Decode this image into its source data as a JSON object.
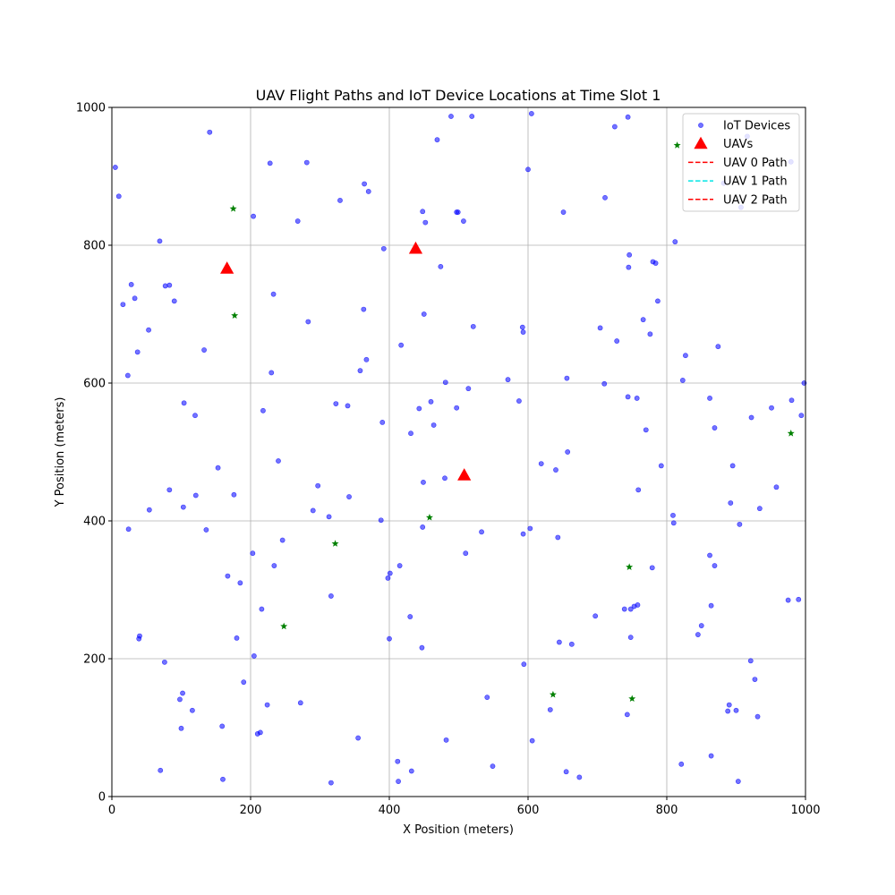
{
  "chart_data": {
    "type": "scatter",
    "title": "UAV Flight Paths and IoT Device Locations at Time Slot 1",
    "xlabel": "X Position (meters)",
    "ylabel": "Y Position (meters)",
    "xlim": [
      0,
      1000
    ],
    "ylim": [
      0,
      1000
    ],
    "xticks": [
      0,
      200,
      400,
      600,
      800,
      1000
    ],
    "yticks": [
      0,
      200,
      400,
      600,
      800,
      1000
    ],
    "grid": true,
    "legend_position": "top-right",
    "colors": {
      "iot": "#0000ff",
      "uav": "#ff0000",
      "hover": "#008000",
      "path0": "#ff0000",
      "path1": "#00e5e5",
      "path2": "#ff0000"
    },
    "legend": [
      {
        "label": "IoT Devices",
        "kind": "dot",
        "color": "#0000ff"
      },
      {
        "label": "UAVs",
        "kind": "triangle",
        "color": "#ff0000"
      },
      {
        "label": "UAV 0 Path",
        "kind": "dash",
        "color": "#ff0000"
      },
      {
        "label": "UAV 1 Path",
        "kind": "dash",
        "color": "#00e5e5"
      },
      {
        "label": "UAV 2 Path",
        "kind": "dash",
        "color": "#ff0000"
      }
    ],
    "series": [
      {
        "name": "IoT Devices",
        "points": [
          [
            5,
            913
          ],
          [
            10,
            871
          ],
          [
            16,
            714
          ],
          [
            23,
            611
          ],
          [
            24,
            388
          ],
          [
            28,
            743
          ],
          [
            33,
            723
          ],
          [
            37,
            645
          ],
          [
            39,
            229
          ],
          [
            40,
            233
          ],
          [
            53,
            677
          ],
          [
            54,
            416
          ],
          [
            69,
            806
          ],
          [
            70,
            38
          ],
          [
            76,
            195
          ],
          [
            77,
            741
          ],
          [
            83,
            742
          ],
          [
            83,
            445
          ],
          [
            90,
            719
          ],
          [
            98,
            141
          ],
          [
            100,
            99
          ],
          [
            102,
            150
          ],
          [
            103,
            420
          ],
          [
            104,
            571
          ],
          [
            116,
            125
          ],
          [
            120,
            553
          ],
          [
            121,
            437
          ],
          [
            133,
            648
          ],
          [
            136,
            387
          ],
          [
            141,
            964
          ],
          [
            153,
            477
          ],
          [
            159,
            102
          ],
          [
            160,
            25
          ],
          [
            167,
            320
          ],
          [
            176,
            438
          ],
          [
            180,
            230
          ],
          [
            185,
            310
          ],
          [
            190,
            166
          ],
          [
            203,
            353
          ],
          [
            204,
            842
          ],
          [
            205,
            204
          ],
          [
            210,
            91
          ],
          [
            214,
            93
          ],
          [
            216,
            272
          ],
          [
            218,
            560
          ],
          [
            224,
            133
          ],
          [
            228,
            919
          ],
          [
            230,
            615
          ],
          [
            233,
            729
          ],
          [
            234,
            335
          ],
          [
            240,
            487
          ],
          [
            246,
            372
          ],
          [
            268,
            835
          ],
          [
            272,
            136
          ],
          [
            281,
            920
          ],
          [
            283,
            689
          ],
          [
            290,
            415
          ],
          [
            297,
            451
          ],
          [
            313,
            406
          ],
          [
            316,
            20
          ],
          [
            316,
            291
          ],
          [
            323,
            570
          ],
          [
            329,
            865
          ],
          [
            340,
            567
          ],
          [
            342,
            435
          ],
          [
            355,
            85
          ],
          [
            358,
            618
          ],
          [
            363,
            707
          ],
          [
            364,
            889
          ],
          [
            367,
            634
          ],
          [
            370,
            878
          ],
          [
            388,
            401
          ],
          [
            390,
            543
          ],
          [
            392,
            795
          ],
          [
            398,
            317
          ],
          [
            400,
            229
          ],
          [
            401,
            324
          ],
          [
            412,
            51
          ],
          [
            413,
            22
          ],
          [
            415,
            335
          ],
          [
            417,
            655
          ],
          [
            430,
            261
          ],
          [
            431,
            527
          ],
          [
            432,
            37
          ],
          [
            443,
            563
          ],
          [
            447,
            216
          ],
          [
            448,
            391
          ],
          [
            448,
            849
          ],
          [
            449,
            456
          ],
          [
            450,
            700
          ],
          [
            452,
            833
          ],
          [
            460,
            573
          ],
          [
            464,
            539
          ],
          [
            469,
            953
          ],
          [
            474,
            769
          ],
          [
            480,
            462
          ],
          [
            481,
            601
          ],
          [
            482,
            82
          ],
          [
            489,
            987
          ],
          [
            497,
            564
          ],
          [
            497,
            848
          ],
          [
            499,
            848
          ],
          [
            507,
            835
          ],
          [
            510,
            353
          ],
          [
            514,
            592
          ],
          [
            519,
            987
          ],
          [
            521,
            682
          ],
          [
            533,
            384
          ],
          [
            541,
            144
          ],
          [
            549,
            44
          ],
          [
            571,
            605
          ],
          [
            587,
            574
          ],
          [
            592,
            681
          ],
          [
            593,
            674
          ],
          [
            593,
            381
          ],
          [
            594,
            192
          ],
          [
            600,
            910
          ],
          [
            603,
            389
          ],
          [
            605,
            991
          ],
          [
            606,
            81
          ],
          [
            619,
            483
          ],
          [
            632,
            126
          ],
          [
            640,
            474
          ],
          [
            643,
            376
          ],
          [
            645,
            224
          ],
          [
            651,
            848
          ],
          [
            655,
            36
          ],
          [
            656,
            607
          ],
          [
            657,
            500
          ],
          [
            663,
            221
          ],
          [
            674,
            28
          ],
          [
            697,
            262
          ],
          [
            704,
            680
          ],
          [
            710,
            599
          ],
          [
            711,
            869
          ],
          [
            725,
            972
          ],
          [
            728,
            661
          ],
          [
            739,
            272
          ],
          [
            743,
            119
          ],
          [
            744,
            580
          ],
          [
            744,
            986
          ],
          [
            745,
            768
          ],
          [
            746,
            786
          ],
          [
            748,
            272
          ],
          [
            748,
            231
          ],
          [
            753,
            276
          ],
          [
            757,
            578
          ],
          [
            758,
            278
          ],
          [
            759,
            445
          ],
          [
            766,
            692
          ],
          [
            770,
            532
          ],
          [
            776,
            671
          ],
          [
            779,
            332
          ],
          [
            780,
            776
          ],
          [
            784,
            774
          ],
          [
            787,
            719
          ],
          [
            792,
            480
          ],
          [
            809,
            408
          ],
          [
            810,
            397
          ],
          [
            812,
            805
          ],
          [
            821,
            47
          ],
          [
            823,
            604
          ],
          [
            827,
            640
          ],
          [
            845,
            235
          ],
          [
            850,
            248
          ],
          [
            862,
            578
          ],
          [
            862,
            350
          ],
          [
            864,
            277
          ],
          [
            864,
            59
          ],
          [
            869,
            535
          ],
          [
            869,
            335
          ],
          [
            874,
            653
          ],
          [
            882,
            890
          ],
          [
            888,
            124
          ],
          [
            890,
            133
          ],
          [
            892,
            426
          ],
          [
            895,
            480
          ],
          [
            900,
            125
          ],
          [
            903,
            22
          ],
          [
            905,
            395
          ],
          [
            907,
            855
          ],
          [
            916,
            958
          ],
          [
            921,
            197
          ],
          [
            922,
            550
          ],
          [
            927,
            170
          ],
          [
            931,
            116
          ],
          [
            934,
            418
          ],
          [
            951,
            564
          ],
          [
            958,
            449
          ],
          [
            975,
            285
          ],
          [
            979,
            921
          ],
          [
            980,
            575
          ],
          [
            990,
            286
          ],
          [
            994,
            553
          ],
          [
            998,
            600
          ]
        ]
      },
      {
        "name": "Hovering Points",
        "points": [
          [
            175,
            853
          ],
          [
            177,
            698
          ],
          [
            248,
            247
          ],
          [
            322,
            367
          ],
          [
            458,
            405
          ],
          [
            636,
            148
          ],
          [
            746,
            333
          ],
          [
            750,
            142
          ],
          [
            815,
            945
          ],
          [
            979,
            527
          ]
        ]
      },
      {
        "name": "UAVs",
        "points": [
          [
            166,
            766
          ],
          [
            438,
            795
          ],
          [
            508,
            466
          ]
        ]
      }
    ]
  }
}
